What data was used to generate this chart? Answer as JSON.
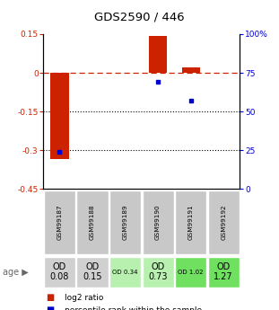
{
  "title": "GDS2590 / 446",
  "samples": [
    "GSM99187",
    "GSM99188",
    "GSM99189",
    "GSM99190",
    "GSM99191",
    "GSM99192"
  ],
  "log2_ratios": [
    -0.335,
    0.0,
    0.0,
    0.143,
    0.022,
    0.0
  ],
  "percentile_ranks": [
    24.0,
    0.0,
    0.0,
    69.0,
    57.0,
    0.0
  ],
  "bar_color": "#cc2200",
  "dot_color": "#0000cc",
  "ylim_left": [
    -0.45,
    0.15
  ],
  "ylim_right": [
    0,
    100
  ],
  "yticks_left": [
    -0.45,
    -0.3,
    -0.15,
    0.0,
    0.15
  ],
  "yticks_right": [
    0,
    25,
    50,
    75,
    100
  ],
  "ytick_labels_left": [
    "-0.45",
    "-0.3",
    "-0.15",
    "0",
    "0.15"
  ],
  "ytick_labels_right": [
    "0",
    "25",
    "50",
    "75",
    "100%"
  ],
  "hline_y": 0.0,
  "dotline_y": [
    -0.15,
    -0.3
  ],
  "age_labels": [
    "OD\n0.08",
    "OD\n0.15",
    "OD 0.34",
    "OD\n0.73",
    "OD 1.02",
    "OD\n1.27"
  ],
  "age_bg_colors": [
    "#d0d0d0",
    "#d0d0d0",
    "#b8f0b0",
    "#b8f0b0",
    "#70e060",
    "#70e060"
  ],
  "age_fontsize_small": [
    false,
    false,
    true,
    false,
    true,
    false
  ],
  "sample_bg_color": "#c8c8c8",
  "legend_items": [
    {
      "label": "log2 ratio",
      "color": "#cc2200"
    },
    {
      "label": "percentile rank within the sample",
      "color": "#0000cc"
    }
  ]
}
